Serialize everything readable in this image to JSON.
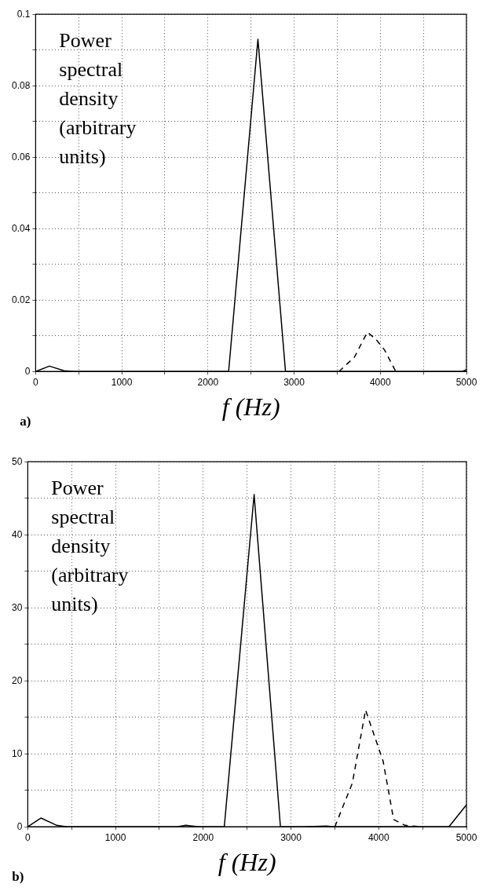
{
  "chart_data": [
    {
      "type": "line",
      "xlabel": "f (Hz)",
      "annotations": [
        "Power spectral density (arbitrary units)",
        "a)"
      ],
      "xlim": [
        0,
        5000
      ],
      "xticks": [
        0,
        {
          "value": 500,
          "label": null
        },
        1000,
        {
          "value": 1500,
          "label": null
        },
        2000,
        {
          "value": 2500,
          "label": null
        },
        3000,
        {
          "value": 3500,
          "label": null
        },
        4000,
        {
          "value": 4500,
          "label": null
        },
        5000
      ],
      "ylim": [
        0,
        0.1
      ],
      "yticks": [
        0,
        {
          "value": 0.01,
          "label": null
        },
        0.02,
        {
          "value": 0.03,
          "label": null
        },
        0.04,
        {
          "value": 0.05,
          "label": null
        },
        0.06,
        {
          "value": 0.07,
          "label": null
        },
        0.08,
        {
          "value": 0.09,
          "label": null
        },
        0.1
      ],
      "grid": true,
      "marker": "none",
      "series": [
        {
          "color": "#000000",
          "line_style": "solid",
          "x": [
            0,
            160,
            330,
            450,
            2240,
            2580,
            2900,
            4950,
            5000
          ],
          "values": [
            0,
            0.0015,
            0.0002,
            0,
            0,
            0.093,
            0,
            0,
            0.0005
          ]
        },
        {
          "color": "#000000",
          "line_style": "dashed",
          "x": [
            3520,
            3700,
            3850,
            3950,
            4050,
            4180
          ],
          "values": [
            0,
            0.004,
            0.011,
            0.009,
            0.006,
            0
          ]
        }
      ]
    },
    {
      "type": "line",
      "xlabel": "f (Hz)",
      "annotations": [
        "Power spectral density (arbitrary units)",
        "b)"
      ],
      "xlim": [
        0,
        5000
      ],
      "xticks": [
        0,
        {
          "value": 500,
          "label": null
        },
        1000,
        {
          "value": 1500,
          "label": null
        },
        2000,
        {
          "value": 2500,
          "label": null
        },
        3000,
        {
          "value": 3500,
          "label": null
        },
        4000,
        {
          "value": 4500,
          "label": null
        },
        5000
      ],
      "ylim": [
        0,
        50
      ],
      "yticks": [
        0,
        {
          "value": 5,
          "label": null
        },
        10,
        {
          "value": 15,
          "label": null
        },
        20,
        {
          "value": 25,
          "label": null
        },
        30,
        {
          "value": 35,
          "label": null
        },
        40,
        {
          "value": 45,
          "label": null
        },
        50
      ],
      "grid": true,
      "marker": "none",
      "series": [
        {
          "color": "#000000",
          "line_style": "solid",
          "x": [
            0,
            150,
            330,
            450,
            1700,
            1800,
            1950,
            2240,
            2580,
            2880,
            3150,
            3400,
            3500,
            4800,
            5000
          ],
          "values": [
            0,
            1.2,
            0.2,
            0,
            0,
            0.2,
            0,
            0,
            45.5,
            0,
            0,
            0.1,
            0,
            0,
            3
          ]
        },
        {
          "color": "#000000",
          "line_style": "dashed",
          "x": [
            3500,
            3700,
            3850,
            4050,
            4170,
            4300,
            4500
          ],
          "values": [
            0,
            6,
            16,
            9,
            1,
            0.2,
            0
          ]
        }
      ]
    }
  ]
}
